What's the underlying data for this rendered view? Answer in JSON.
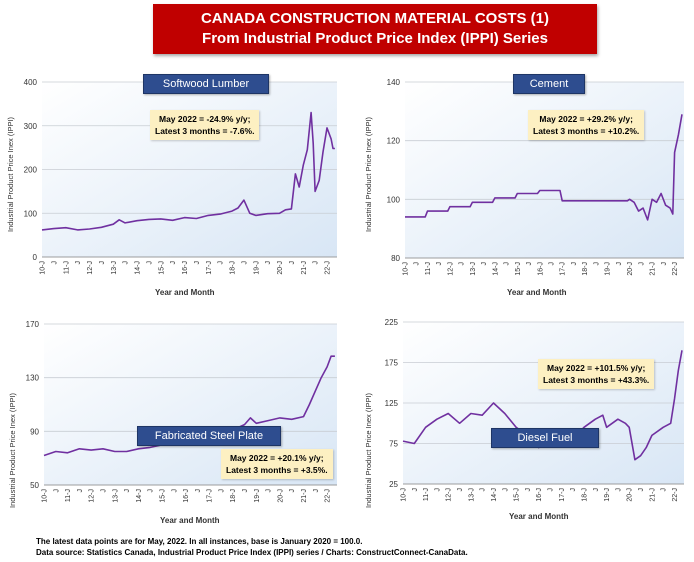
{
  "header": {
    "title_line1": "CANADA CONSTRUCTION MATERIAL COSTS (1)",
    "title_line2": "From Industrial Product Price Index (IPPI) Series"
  },
  "footer": {
    "line1": "The latest data points are for May, 2022. In all instances, base is January 2020 = 100.0.",
    "line2": "Data source: Statistics Canada, Industrial Product Price Index (IPPI) series / Charts: ConstructConnect-CanaData."
  },
  "line_color": "#7030a0",
  "chart_data": [
    {
      "type": "line",
      "title": "Softwood Lumber",
      "ylabel": "Industrial Product Price Inex (IPPI)",
      "xlabel": "Year and Month",
      "ylim": [
        0,
        400
      ],
      "yticks": [
        0,
        100,
        200,
        300,
        400
      ],
      "ytick_labels": [
        "0",
        "100",
        "200",
        "300",
        "400"
      ],
      "xticks": [
        "10-J",
        "J",
        "11-J",
        "J",
        "12-J",
        "J",
        "13-J",
        "J",
        "14-J",
        "J",
        "15-J",
        "J",
        "16-J",
        "J",
        "17-J",
        "J",
        "18-J",
        "J",
        "19-J",
        "J",
        "20-J",
        "J",
        "21-J",
        "J",
        "22-J"
      ],
      "annotation": [
        "May 2022 = -24.9% y/y;",
        "Latest 3 months = -7.6%."
      ],
      "x": [
        2010.0,
        2010.5,
        2011.0,
        2011.5,
        2012.0,
        2012.5,
        2013.0,
        2013.25,
        2013.5,
        2014.0,
        2014.5,
        2015.0,
        2015.5,
        2016.0,
        2016.5,
        2017.0,
        2017.5,
        2018.0,
        2018.25,
        2018.5,
        2018.75,
        2019.0,
        2019.5,
        2020.0,
        2020.25,
        2020.5,
        2020.67,
        2020.83,
        2021.0,
        2021.17,
        2021.33,
        2021.42,
        2021.5,
        2021.67,
        2021.83,
        2022.0,
        2022.17,
        2022.25,
        2022.33
      ],
      "y": [
        62,
        65,
        67,
        62,
        64,
        68,
        75,
        85,
        78,
        83,
        86,
        87,
        84,
        90,
        88,
        95,
        98,
        105,
        112,
        130,
        100,
        95,
        99,
        100,
        108,
        110,
        190,
        160,
        210,
        245,
        330,
        260,
        150,
        175,
        240,
        295,
        270,
        248,
        248
      ]
    },
    {
      "type": "line",
      "title": "Cement",
      "ylabel": "Industrial Product Price Inex (IPPI)",
      "xlabel": "Year and Month",
      "ylim": [
        80,
        140
      ],
      "yticks": [
        80,
        100,
        120,
        140
      ],
      "ytick_labels": [
        "80",
        "100",
        "120",
        "140"
      ],
      "xticks": [
        "10-J",
        "J",
        "11-J",
        "J",
        "12-J",
        "J",
        "13-J",
        "J",
        "14-J",
        "J",
        "15-J",
        "J",
        "16-J",
        "J",
        "17-J",
        "J",
        "18-J",
        "J",
        "19-J",
        "J",
        "20-J",
        "J",
        "21-J",
        "J",
        "22-J"
      ],
      "annotation": [
        "May 2022 = +29.2% y/y;",
        "Latest 3 months = +10.2%."
      ],
      "x": [
        2010.0,
        2010.9,
        2011.0,
        2011.9,
        2012.0,
        2012.9,
        2013.0,
        2013.9,
        2014.0,
        2014.9,
        2015.0,
        2015.9,
        2016.0,
        2016.9,
        2017.0,
        2017.9,
        2018.0,
        2018.9,
        2019.0,
        2019.9,
        2020.0,
        2020.2,
        2020.4,
        2020.6,
        2020.8,
        2021.0,
        2021.2,
        2021.4,
        2021.6,
        2021.8,
        2021.92,
        2022.0,
        2022.17,
        2022.33
      ],
      "y": [
        94,
        94,
        96,
        96,
        97.5,
        97.5,
        99,
        99,
        100.5,
        100.5,
        102,
        102,
        103,
        103,
        99.5,
        99.5,
        99.5,
        99.5,
        99.5,
        99.5,
        100,
        99,
        96,
        97,
        93,
        100,
        99,
        102,
        98,
        97,
        95,
        116,
        122,
        129
      ]
    },
    {
      "type": "line",
      "title": "Fabricated Steel Plate",
      "ylabel": "Industrial Product Price Inex (IPPI)",
      "xlabel": "Year and Month",
      "ylim": [
        50,
        170
      ],
      "yticks": [
        50,
        90,
        130,
        170
      ],
      "ytick_labels": [
        "50",
        "90",
        "130",
        "170"
      ],
      "xticks": [
        "10-J",
        "J",
        "11-J",
        "J",
        "12-J",
        "J",
        "13-J",
        "J",
        "14-J",
        "J",
        "15-J",
        "J",
        "16-J",
        "J",
        "17-J",
        "J",
        "18-J",
        "J",
        "19-J",
        "J",
        "20-J",
        "J",
        "21-J",
        "J",
        "22-J"
      ],
      "annotation": [
        "May 2022 = +20.1% y/y;",
        "Latest 3 months = +3.5%."
      ],
      "x": [
        2010.0,
        2010.5,
        2011.0,
        2011.5,
        2012.0,
        2012.5,
        2013.0,
        2013.5,
        2014.0,
        2014.5,
        2015.0,
        2015.5,
        2016.0,
        2016.5,
        2017.0,
        2017.5,
        2018.0,
        2018.5,
        2018.75,
        2019.0,
        2019.5,
        2020.0,
        2020.5,
        2021.0,
        2021.25,
        2021.5,
        2021.75,
        2022.0,
        2022.17,
        2022.33
      ],
      "y": [
        72,
        75,
        74,
        77,
        76,
        77,
        75,
        75,
        77,
        78,
        80,
        82,
        85,
        88,
        87,
        88,
        91,
        95,
        100,
        96,
        98,
        100,
        99,
        101,
        110,
        120,
        130,
        138,
        146,
        146
      ]
    },
    {
      "type": "line",
      "title": "Diesel Fuel",
      "ylabel": "Industrial Product Price Inex (IPPI)",
      "xlabel": "Year and Month",
      "ylim": [
        25,
        225
      ],
      "yticks": [
        25,
        75,
        125,
        175,
        225
      ],
      "ytick_labels": [
        "25",
        "75",
        "125",
        "175",
        "225"
      ],
      "xticks": [
        "10-J",
        "J",
        "11-J",
        "J",
        "12-J",
        "J",
        "13-J",
        "J",
        "14-J",
        "J",
        "15-J",
        "J",
        "16-J",
        "J",
        "17-J",
        "J",
        "18-J",
        "J",
        "19-J",
        "J",
        "20-J",
        "J",
        "21-J",
        "J",
        "22-J"
      ],
      "annotation": [
        "May 2022 = +101.5% y/y;",
        "Latest 3 months = +43.3%."
      ],
      "x": [
        2010.0,
        2010.5,
        2011.0,
        2011.5,
        2012.0,
        2012.5,
        2013.0,
        2013.5,
        2014.0,
        2014.5,
        2015.0,
        2015.5,
        2016.0,
        2016.5,
        2017.0,
        2017.5,
        2018.0,
        2018.5,
        2018.83,
        2019.0,
        2019.5,
        2019.83,
        2020.0,
        2020.25,
        2020.5,
        2020.75,
        2021.0,
        2021.5,
        2021.83,
        2022.0,
        2022.17,
        2022.33
      ],
      "y": [
        78,
        75,
        95,
        105,
        112,
        100,
        112,
        110,
        125,
        112,
        95,
        85,
        70,
        80,
        88,
        80,
        95,
        105,
        110,
        95,
        105,
        100,
        95,
        55,
        60,
        70,
        85,
        95,
        100,
        130,
        165,
        190
      ]
    }
  ]
}
